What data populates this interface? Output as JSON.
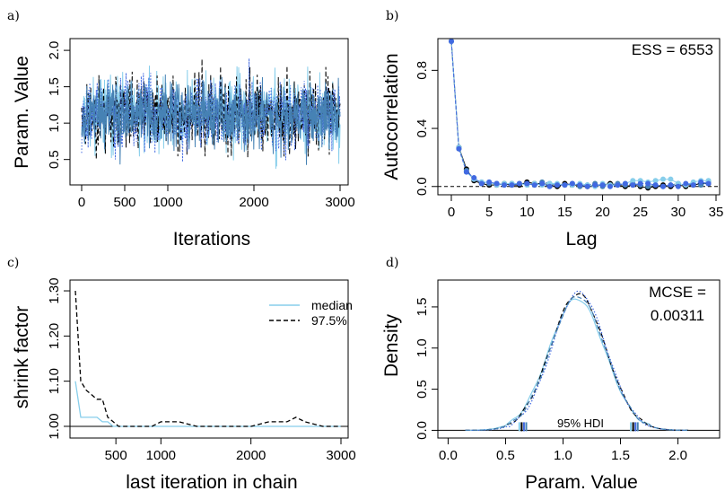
{
  "colors": {
    "dark": "#000000",
    "mid": "#4682b4",
    "light": "#87ceeb",
    "blue": "#4169e1"
  },
  "chart_data": [
    {
      "panel": "a)",
      "type": "line",
      "xlabel": "Iterations",
      "ylabel": "Param. Value",
      "xlim": [
        0,
        3000
      ],
      "ylim": [
        0.2,
        2.1
      ],
      "xticks": [
        0,
        500,
        1000,
        2000,
        3000
      ],
      "xtick_labels": [
        "0",
        "500",
        "1000",
        "2000",
        "3000"
      ],
      "yticks": [
        0.5,
        1.0,
        1.5,
        2.0
      ],
      "ytick_labels": [
        "0.5",
        "1.0",
        "1.5",
        "2.0"
      ],
      "series": [
        {
          "color": "#87ceeb",
          "style": "solid",
          "mean": 1.13,
          "sd": 0.25,
          "seed": 11
        },
        {
          "color": "#000000",
          "style": "dashed",
          "mean": 1.13,
          "sd": 0.25,
          "seed": 23
        },
        {
          "color": "#4169e1",
          "style": "dotted",
          "mean": 1.13,
          "sd": 0.24,
          "seed": 37
        },
        {
          "color": "#4682b4",
          "style": "solid",
          "mean": 1.13,
          "sd": 0.22,
          "seed": 53
        }
      ]
    },
    {
      "panel": "b)",
      "type": "line",
      "xlabel": "Lag",
      "ylabel": "Autocorrelation",
      "annotation": "ESS = 6553",
      "xlim": [
        0,
        35
      ],
      "ylim": [
        -0.02,
        1.0
      ],
      "xticks": [
        0,
        5,
        10,
        15,
        20,
        25,
        30,
        35
      ],
      "xtick_labels": [
        "0",
        "5",
        "10",
        "15",
        "20",
        "25",
        "30",
        "35"
      ],
      "yticks": [
        0.0,
        0.4,
        0.8
      ],
      "ytick_labels": [
        "0.0",
        "0.4",
        "0.8"
      ],
      "lags": [
        0,
        1,
        2,
        3,
        4,
        5,
        6,
        7,
        8,
        9,
        10,
        11,
        12,
        13,
        14,
        15,
        16,
        17,
        18,
        19,
        20,
        21,
        22,
        23,
        24,
        25,
        26,
        27,
        28,
        29,
        30,
        31,
        32,
        33,
        34
      ],
      "series": [
        {
          "color": "#000000",
          "values": [
            1.0,
            0.27,
            0.12,
            0.04,
            0.02,
            0.01,
            0.01,
            0.02,
            0.01,
            0.01,
            0.03,
            0.02,
            0.02,
            0.01,
            0.0,
            0.02,
            0.01,
            0.01,
            0.0,
            0.01,
            0.01,
            0.02,
            0.01,
            0.0,
            0.01,
            0.0,
            -0.01,
            0.0,
            0.01,
            0.0,
            0.01,
            0.0,
            0.01,
            0.02,
            0.02
          ]
        },
        {
          "color": "#4682b4",
          "values": [
            1.0,
            0.26,
            0.11,
            0.05,
            0.03,
            0.02,
            0.02,
            0.01,
            0.02,
            0.02,
            0.02,
            0.01,
            0.03,
            0.02,
            0.01,
            0.01,
            0.02,
            0.0,
            0.01,
            0.02,
            0.0,
            0.01,
            0.02,
            0.01,
            0.02,
            0.01,
            0.0,
            0.01,
            0.0,
            0.01,
            0.02,
            0.01,
            0.02,
            0.01,
            0.03
          ]
        },
        {
          "color": "#87ceeb",
          "values": [
            1.0,
            0.27,
            0.1,
            0.05,
            0.03,
            0.03,
            0.01,
            0.02,
            0.02,
            0.02,
            0.01,
            0.02,
            0.01,
            0.02,
            0.02,
            0.01,
            0.01,
            0.02,
            0.01,
            0.0,
            0.02,
            0.01,
            0.01,
            0.02,
            0.04,
            0.04,
            0.03,
            0.04,
            0.05,
            0.05,
            0.02,
            0.01,
            0.03,
            0.04,
            0.04
          ]
        },
        {
          "color": "#4169e1",
          "values": [
            1.0,
            0.26,
            0.1,
            0.06,
            0.02,
            0.03,
            0.02,
            0.01,
            0.01,
            0.02,
            0.02,
            0.01,
            0.02,
            0.0,
            0.01,
            0.01,
            0.02,
            0.01,
            0.0,
            0.01,
            0.01,
            0.0,
            0.01,
            0.02,
            0.01,
            0.02,
            0.02,
            0.01,
            0.0,
            0.01,
            0.0,
            0.02,
            0.01,
            0.03,
            0.02
          ]
        }
      ]
    },
    {
      "panel": "c)",
      "type": "line",
      "xlabel": "last iteration in chain",
      "ylabel": "shrink factor",
      "xlim": [
        0,
        3000
      ],
      "ylim": [
        0.99,
        1.31
      ],
      "xticks": [
        500,
        1000,
        2000,
        3000
      ],
      "xtick_labels": [
        "500",
        "1000",
        "2000",
        "3000"
      ],
      "yticks": [
        1.0,
        1.1,
        1.2,
        1.3
      ],
      "ytick_labels": [
        "1.00",
        "1.10",
        "1.20",
        "1.30"
      ],
      "reference_line": 1.0,
      "legend": [
        "median",
        "97.5%"
      ],
      "series": [
        {
          "name": "median",
          "color": "#87ceeb",
          "style": "solid",
          "x": [
            50,
            110,
            170,
            230,
            290,
            350,
            410,
            470,
            530,
            600,
            700,
            800,
            900,
            1000,
            1200,
            1400,
            1600,
            1800,
            2000,
            2200,
            2400,
            2500,
            2600,
            2800,
            3000
          ],
          "y": [
            1.1,
            1.02,
            1.02,
            1.02,
            1.02,
            1.01,
            1.01,
            1.0,
            1.0,
            1.0,
            1.0,
            1.0,
            1.0,
            1.0,
            1.0,
            1.0,
            1.0,
            1.0,
            1.0,
            1.0,
            1.0,
            1.0,
            1.0,
            1.0,
            1.0
          ]
        },
        {
          "name": "97.5%",
          "color": "#000000",
          "style": "dashed",
          "x": [
            50,
            110,
            170,
            230,
            290,
            350,
            410,
            470,
            530,
            600,
            700,
            800,
            900,
            1000,
            1200,
            1400,
            1600,
            1800,
            2000,
            2200,
            2400,
            2500,
            2600,
            2800,
            3000
          ],
          "y": [
            1.3,
            1.1,
            1.08,
            1.07,
            1.06,
            1.06,
            1.02,
            1.01,
            1.0,
            1.0,
            1.0,
            1.0,
            1.0,
            1.01,
            1.01,
            1.0,
            1.0,
            1.0,
            1.0,
            1.01,
            1.01,
            1.02,
            1.01,
            1.0,
            1.0
          ]
        }
      ]
    },
    {
      "panel": "d)",
      "type": "line",
      "xlabel": "Param. Value",
      "ylabel": "Density",
      "annotation_lines": [
        "MCSE =",
        "0.00311"
      ],
      "hdi_label": "95% HDI",
      "xlim": [
        -0.05,
        2.3
      ],
      "ylim": [
        -0.05,
        1.75
      ],
      "xticks": [
        0.0,
        0.5,
        1.0,
        1.5,
        2.0
      ],
      "xtick_labels": [
        "0.0",
        "0.5",
        "1.0",
        "1.5",
        "2.0"
      ],
      "yticks": [
        0.0,
        0.5,
        1.0,
        1.5
      ],
      "ytick_labels": [
        "0.0",
        "0.5",
        "1.0",
        "1.5"
      ],
      "hdi_low": [
        0.62,
        0.64,
        0.66,
        0.68
      ],
      "hdi_high": [
        1.59,
        1.61,
        1.63,
        1.65
      ],
      "series": [
        {
          "color": "#87ceeb",
          "style": "solid",
          "mean": 1.12,
          "sd": 0.245,
          "peak": 1.6
        },
        {
          "color": "#000000",
          "style": "dashed",
          "mean": 1.13,
          "sd": 0.24,
          "peak": 1.66
        },
        {
          "color": "#4169e1",
          "style": "dotted",
          "mean": 1.14,
          "sd": 0.235,
          "peak": 1.68
        },
        {
          "color": "#4682b4",
          "style": "dashed",
          "mean": 1.13,
          "sd": 0.24,
          "peak": 1.63
        }
      ]
    }
  ]
}
